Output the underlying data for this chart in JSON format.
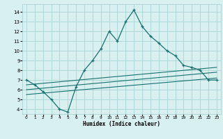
{
  "xlabel": "Humidex (Indice chaleur)",
  "ylabel": "",
  "bg_color": "#d8f0f0",
  "grid_color": "#aad4d4",
  "line_color": "#1a7070",
  "xlim": [
    -0.5,
    23.5
  ],
  "ylim": [
    3.5,
    14.8
  ],
  "xticks": [
    0,
    1,
    2,
    3,
    4,
    5,
    6,
    7,
    8,
    9,
    10,
    11,
    12,
    13,
    14,
    15,
    16,
    17,
    18,
    19,
    20,
    21,
    22,
    23
  ],
  "yticks": [
    4,
    5,
    6,
    7,
    8,
    9,
    10,
    11,
    12,
    13,
    14
  ],
  "main_line_x": [
    0,
    1,
    2,
    3,
    4,
    5,
    6,
    7,
    8,
    9,
    10,
    11,
    12,
    13,
    14,
    15,
    16,
    17,
    18,
    19,
    20,
    21,
    22,
    23
  ],
  "main_line_y": [
    7.0,
    6.5,
    5.8,
    5.0,
    4.0,
    3.7,
    6.3,
    8.0,
    9.0,
    10.2,
    12.0,
    11.0,
    13.0,
    14.2,
    12.5,
    11.5,
    10.8,
    10.0,
    9.5,
    8.5,
    8.3,
    8.0,
    7.0,
    7.0
  ],
  "line2_x": [
    0,
    23
  ],
  "line2_y": [
    6.5,
    8.3
  ],
  "line3_x": [
    0,
    23
  ],
  "line3_y": [
    6.0,
    7.8
  ],
  "line4_x": [
    0,
    23
  ],
  "line4_y": [
    5.5,
    7.2
  ]
}
